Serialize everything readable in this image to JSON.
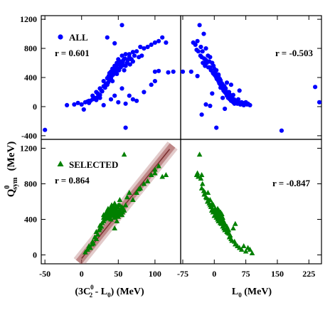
{
  "figure": {
    "ylabel": "(MeV)",
    "ylabel_symbol": "Q",
    "ylabel_sup": "0",
    "ylabel_sub": "sym"
  },
  "chart_data": [
    {
      "type": "scatter",
      "panel": "top-left",
      "legend": "ALL",
      "annotation": "r = 0.601",
      "marker": "circle",
      "color": "#0000ff",
      "xlim": [
        -55,
        135
      ],
      "ylim": [
        -450,
        1250
      ],
      "yticks": [
        -400,
        0,
        400,
        800,
        1200
      ],
      "ytick_labels": [
        "-400",
        "0",
        "400",
        "800",
        "1200"
      ],
      "x": [
        -50,
        -20,
        -10,
        -5,
        0,
        3,
        5,
        8,
        10,
        12,
        15,
        15,
        18,
        20,
        20,
        22,
        22,
        25,
        25,
        27,
        28,
        30,
        30,
        32,
        33,
        35,
        35,
        36,
        37,
        38,
        38,
        40,
        40,
        41,
        42,
        42,
        43,
        44,
        45,
        45,
        46,
        47,
        48,
        48,
        49,
        50,
        50,
        51,
        52,
        53,
        54,
        55,
        55,
        56,
        57,
        58,
        59,
        60,
        60,
        62,
        63,
        65,
        65,
        66,
        68,
        70,
        70,
        72,
        75,
        78,
        80,
        82,
        85,
        90,
        95,
        100,
        105,
        110,
        115,
        125,
        35,
        45,
        55,
        60,
        65,
        70,
        75,
        85,
        95,
        100,
        55,
        30,
        40,
        25,
        20,
        10,
        60,
        50,
        45,
        100,
        105,
        118
      ],
      "y": [
        -320,
        20,
        30,
        50,
        30,
        -40,
        60,
        70,
        50,
        80,
        100,
        150,
        120,
        90,
        200,
        130,
        180,
        160,
        250,
        220,
        210,
        280,
        350,
        260,
        310,
        300,
        390,
        330,
        420,
        360,
        460,
        380,
        480,
        420,
        350,
        520,
        440,
        470,
        500,
        560,
        480,
        540,
        600,
        450,
        520,
        580,
        650,
        500,
        620,
        540,
        580,
        560,
        700,
        600,
        640,
        500,
        660,
        560,
        720,
        600,
        640,
        680,
        720,
        580,
        650,
        620,
        750,
        700,
        760,
        680,
        820,
        700,
        800,
        820,
        850,
        880,
        900,
        950,
        880,
        480,
        950,
        870,
        1120,
        -290,
        150,
        100,
        80,
        200,
        300,
        350,
        250,
        20,
        100,
        120,
        100,
        80,
        40,
        60,
        150,
        480,
        490,
        470
      ]
    },
    {
      "type": "scatter",
      "panel": "top-right",
      "annotation": "r = -0.503",
      "marker": "circle",
      "color": "#0000ff",
      "xlim": [
        -80,
        255
      ],
      "ylim": [
        -450,
        1250
      ],
      "x": [
        -75,
        -55,
        -50,
        -45,
        -42,
        -40,
        -38,
        -35,
        -33,
        -32,
        -30,
        -28,
        -27,
        -25,
        -24,
        -22,
        -20,
        -20,
        -18,
        -15,
        -14,
        -12,
        -10,
        -10,
        -8,
        -5,
        -3,
        -2,
        0,
        0,
        2,
        3,
        5,
        5,
        6,
        8,
        10,
        10,
        12,
        13,
        15,
        15,
        17,
        18,
        20,
        20,
        22,
        24,
        25,
        27,
        28,
        30,
        32,
        33,
        35,
        37,
        38,
        40,
        42,
        45,
        47,
        48,
        50,
        52,
        55,
        57,
        60,
        62,
        65,
        68,
        70,
        72,
        75,
        78,
        80,
        85,
        160,
        240,
        250,
        -30,
        -20,
        -5,
        25,
        45,
        60,
        5,
        -10,
        40,
        15,
        30,
        -40,
        10,
        20,
        35
      ],
      "y": [
        480,
        480,
        880,
        850,
        780,
        900,
        760,
        1120,
        700,
        820,
        680,
        760,
        600,
        1000,
        660,
        560,
        800,
        640,
        600,
        700,
        540,
        620,
        540,
        680,
        500,
        600,
        460,
        560,
        440,
        520,
        480,
        420,
        400,
        500,
        380,
        440,
        350,
        420,
        320,
        380,
        300,
        360,
        280,
        320,
        250,
        300,
        220,
        280,
        200,
        250,
        180,
        150,
        200,
        120,
        140,
        100,
        160,
        80,
        120,
        60,
        100,
        40,
        80,
        60,
        40,
        100,
        50,
        30,
        60,
        40,
        20,
        50,
        60,
        30,
        40,
        20,
        -330,
        270,
        60,
        -110,
        30,
        180,
        -30,
        160,
        220,
        -290,
        10,
        300,
        260,
        330,
        420,
        440,
        120,
        200
      ]
    },
    {
      "type": "scatter",
      "panel": "bottom-left",
      "legend": "SELECTED",
      "annotation": "r = 0.864",
      "marker": "triangle",
      "color": "#008000",
      "band_color": "#a05050",
      "xlim": [
        -55,
        135
      ],
      "ylim": [
        -100,
        1300
      ],
      "xticks": [
        -50,
        0,
        50,
        100
      ],
      "xtick_labels": [
        "-50",
        "0",
        "50",
        "100"
      ],
      "yticks": [
        0,
        400,
        800,
        1200
      ],
      "ytick_labels": [
        "0",
        "400",
        "800",
        "1200"
      ],
      "xlabel": "(3C",
      "xlabel_sup": "0",
      "xlabel_sub": "2",
      "xlabel_tail": " - L",
      "xlabel_sub2": "0",
      "xlabel_end": ")  (MeV)",
      "fit_line": {
        "x": [
          0,
          120
        ],
        "y": [
          -40,
          1190
        ]
      },
      "x": [
        5,
        8,
        10,
        12,
        14,
        15,
        16,
        18,
        20,
        20,
        22,
        24,
        25,
        25,
        27,
        28,
        30,
        30,
        30,
        31,
        32,
        33,
        34,
        34,
        35,
        35,
        36,
        36,
        37,
        37,
        38,
        38,
        39,
        39,
        40,
        40,
        40,
        41,
        41,
        42,
        42,
        43,
        43,
        44,
        44,
        45,
        45,
        45,
        46,
        46,
        47,
        47,
        48,
        48,
        49,
        49,
        50,
        50,
        50,
        51,
        52,
        52,
        53,
        54,
        55,
        55,
        56,
        57,
        58,
        60,
        62,
        65,
        70,
        75,
        78,
        80,
        85,
        90,
        95,
        100,
        100,
        105,
        110,
        115,
        58,
        45,
        52,
        48
      ],
      "y": [
        30,
        60,
        100,
        80,
        120,
        150,
        130,
        200,
        180,
        260,
        230,
        280,
        300,
        330,
        320,
        360,
        380,
        420,
        450,
        400,
        430,
        470,
        440,
        480,
        410,
        500,
        460,
        520,
        440,
        480,
        420,
        500,
        450,
        520,
        400,
        460,
        540,
        480,
        560,
        440,
        500,
        460,
        520,
        480,
        540,
        420,
        500,
        580,
        460,
        530,
        480,
        550,
        440,
        500,
        470,
        540,
        430,
        490,
        560,
        460,
        500,
        560,
        480,
        520,
        450,
        540,
        480,
        520,
        500,
        560,
        650,
        700,
        620,
        700,
        740,
        750,
        800,
        830,
        900,
        920,
        960,
        1000,
        880,
        900,
        1130,
        300,
        620,
        380
      ]
    },
    {
      "type": "scatter",
      "panel": "bottom-right",
      "annotation": "r = -0.847",
      "marker": "triangle",
      "color": "#008000",
      "xlim": [
        -80,
        255
      ],
      "ylim": [
        -100,
        1300
      ],
      "xticks": [
        -75,
        0,
        75,
        150,
        225
      ],
      "xtick_labels": [
        "-75",
        "0",
        "75",
        "150",
        "225"
      ],
      "xlabel": "L",
      "xlabel_sub": "0",
      "xlabel_tail": "  (MeV)",
      "x": [
        -42,
        -40,
        -38,
        -35,
        -32,
        -30,
        -28,
        -25,
        -24,
        -22,
        -20,
        -18,
        -16,
        -15,
        -14,
        -12,
        -10,
        -10,
        -8,
        -6,
        -5,
        -4,
        -3,
        -2,
        0,
        0,
        2,
        3,
        4,
        5,
        6,
        7,
        8,
        8,
        10,
        10,
        11,
        12,
        13,
        14,
        15,
        15,
        16,
        17,
        18,
        19,
        20,
        20,
        22,
        23,
        24,
        25,
        26,
        28,
        30,
        30,
        32,
        34,
        35,
        36,
        38,
        40,
        42,
        45,
        48,
        50,
        55,
        60,
        65,
        70,
        75,
        80,
        85,
        90,
        -30,
        20,
        50
      ],
      "y": [
        900,
        920,
        880,
        1130,
        860,
        750,
        800,
        720,
        680,
        700,
        650,
        640,
        600,
        700,
        620,
        580,
        560,
        620,
        540,
        500,
        580,
        520,
        480,
        560,
        500,
        440,
        520,
        460,
        480,
        420,
        500,
        440,
        400,
        520,
        460,
        380,
        500,
        420,
        440,
        360,
        480,
        400,
        420,
        350,
        460,
        380,
        400,
        320,
        380,
        300,
        360,
        280,
        340,
        300,
        260,
        320,
        250,
        280,
        240,
        200,
        220,
        180,
        160,
        300,
        150,
        120,
        100,
        80,
        60,
        100,
        40,
        80,
        60,
        20,
        900,
        420,
        350
      ]
    }
  ]
}
